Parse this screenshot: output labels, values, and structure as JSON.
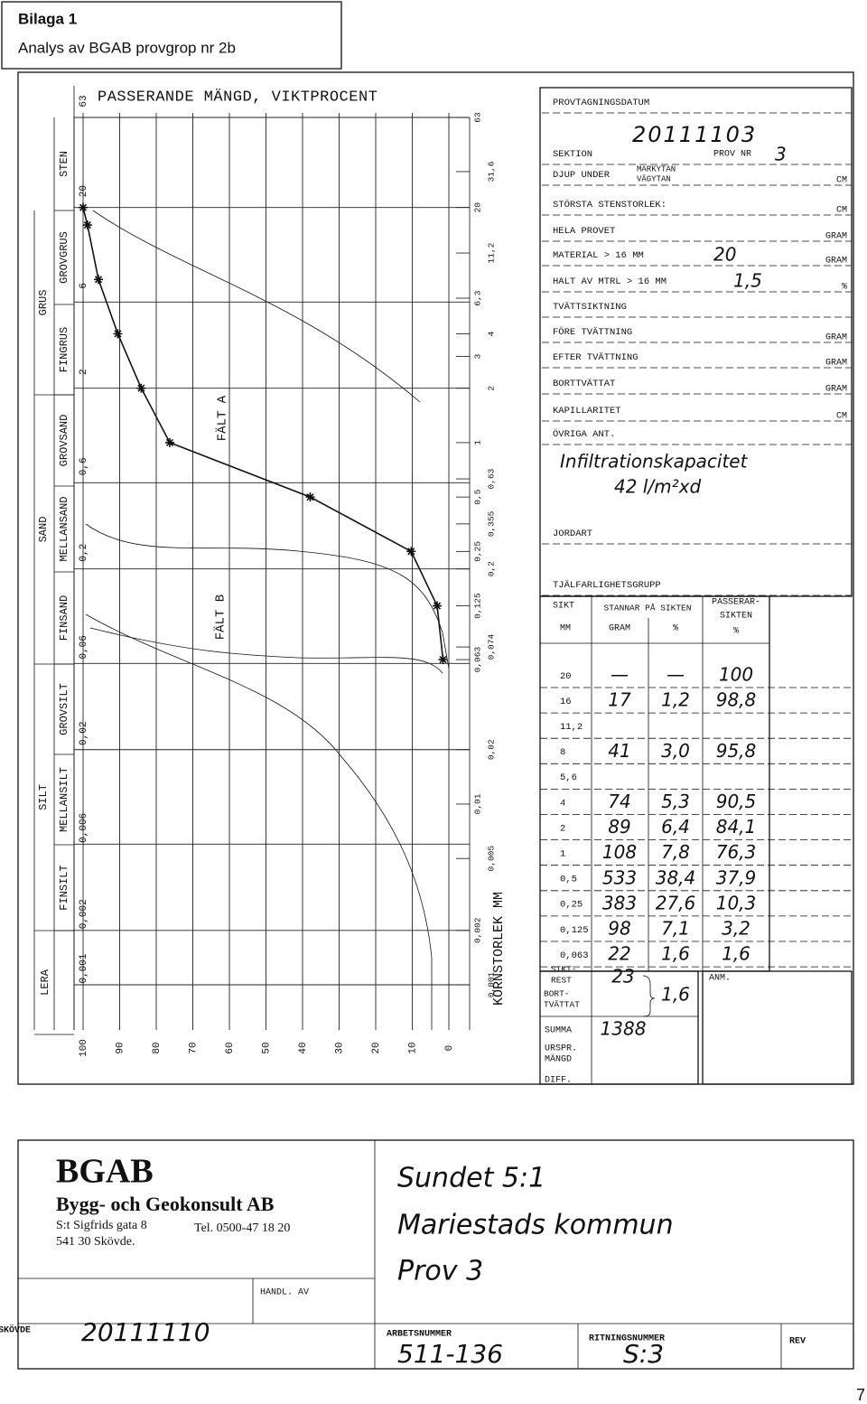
{
  "header": {
    "appendix": "Bilaga 1",
    "title": "Analys av BGAB provgrop nr 2b"
  },
  "chart_data": {
    "type": "line",
    "title": "PASSERANDE MÄNGD, VIKTPROCENT",
    "x_label": "KORNSTORLEK MM",
    "annotations": [
      "FÄLT A",
      "FÄLT B"
    ],
    "x": [
      20,
      16,
      8,
      4,
      2,
      1,
      0.5,
      0.25,
      0.125,
      0.063
    ],
    "values": [
      100,
      98.8,
      95.8,
      90.5,
      84.1,
      76.3,
      37.9,
      10.3,
      3.2,
      1.6
    ],
    "color": "#111111",
    "xlim": [
      63,
      0.001
    ],
    "x_log": true,
    "xticks": [
      63,
      20,
      6,
      2,
      {
        "value": 0.6,
        "label": "0,6"
      },
      {
        "value": 0.2,
        "label": "0,2"
      },
      {
        "value": 0.06,
        "label": "0,06"
      },
      {
        "value": 0.02,
        "label": "0,02"
      },
      {
        "value": 0.006,
        "label": "0,006"
      },
      {
        "value": 0.002,
        "label": "0,002"
      },
      {
        "value": 0.001,
        "label": "0,001"
      }
    ],
    "sieve_ticks": [
      63,
      {
        "value": 31.6,
        "label": "31,6"
      },
      20,
      {
        "value": 11.2,
        "label": "11,2"
      },
      {
        "value": 6.3,
        "label": "6,3"
      },
      4,
      3,
      2,
      1,
      {
        "value": 0.63,
        "label": "0,63"
      },
      {
        "value": 0.5,
        "label": "0,5"
      },
      {
        "value": 0.355,
        "label": "0,355"
      },
      {
        "value": 0.25,
        "label": "0,25"
      },
      {
        "value": 0.2,
        "label": "0,2"
      },
      {
        "value": 0.125,
        "label": "0,125"
      },
      {
        "value": 0.074,
        "label": "0,074"
      },
      {
        "value": 0.063,
        "label": "0,063"
      },
      {
        "value": 0.02,
        "label": "0,02"
      },
      {
        "value": 0.01,
        "label": "0,01"
      },
      {
        "value": 0.005,
        "label": "0,005"
      },
      {
        "value": 0.002,
        "label": "0,002"
      },
      {
        "value": 0.001,
        "label": "0,001"
      }
    ],
    "ylim": [
      100,
      0
    ],
    "yticks": [
      100,
      90,
      80,
      70,
      60,
      50,
      40,
      30,
      20,
      10,
      0
    ],
    "grid": true
  },
  "fractions": [
    "STEN",
    "GRUS",
    "GROVGRUS",
    "FINGRUS",
    "SAND",
    "GROVSAND",
    "MELLANSAND",
    "FINSAND",
    "SILT",
    "GROVSILT",
    "MELLANSILT",
    "FINSILT",
    "LERA"
  ],
  "form_rows": [
    {
      "label": "PROVTAGNINGSDATUM",
      "value": "20111103"
    },
    {
      "label": "SEKTION",
      "value_label": "PROV NR",
      "value": "3"
    },
    {
      "label": "DJUP UNDER",
      "sub": [
        "MARKYTAN",
        "VÄGYTAN"
      ],
      "unit": "CM"
    },
    {
      "label": "STÖRSTA STENSTORLEK:",
      "unit": "CM"
    },
    {
      "label": "HELA PROVET",
      "unit": "GRAM"
    },
    {
      "label": "MATERIAL > 16 MM",
      "value": "20",
      "unit": "GRAM"
    },
    {
      "label": "HALT AV MTRL > 16 MM",
      "value": "1,5",
      "unit": "%"
    },
    {
      "label": "TVÄTTSIKTNING"
    },
    {
      "label": "FÖRE TVÄTTNING",
      "unit": "GRAM"
    },
    {
      "label": "EFTER TVÄTTNING",
      "unit": "GRAM"
    },
    {
      "label": "BORTTVÄTTAT",
      "unit": "GRAM"
    },
    {
      "label": "KAPILLARITET",
      "unit": "CM"
    },
    {
      "label": "ÖVRIGA ANT.",
      "notes": [
        "Infiltrationskapacitet",
        "42 l/m²xd"
      ]
    },
    {
      "label": "JORDART"
    },
    {
      "label": "TJÄLFARLIGHETSGRUPP"
    }
  ],
  "sieve_table": {
    "headers": {
      "sieve": [
        "SIKT",
        "MM"
      ],
      "retained": [
        "STANNAR PÅ SIKTEN",
        "GRAM",
        "%"
      ],
      "passing": [
        "PASSERAR-",
        "SIKTEN",
        "%"
      ]
    },
    "rows": [
      {
        "sieve": "20",
        "grams": "—",
        "pct": "—",
        "passing": "100"
      },
      {
        "sieve": "16",
        "grams": "17",
        "pct": "1,2",
        "passing": "98,8"
      },
      {
        "sieve": "11,2"
      },
      {
        "sieve": "8",
        "grams": "41",
        "pct": "3,0",
        "passing": "95,8"
      },
      {
        "sieve": "5,6"
      },
      {
        "sieve": "4",
        "grams": "74",
        "pct": "5,3",
        "passing": "90,5"
      },
      {
        "sieve": "2",
        "grams": "89",
        "pct": "6,4",
        "passing": "84,1"
      },
      {
        "sieve": "1",
        "grams": "108",
        "pct": "7,8",
        "passing": "76,3"
      },
      {
        "sieve": "0,5",
        "grams": "533",
        "pct": "38,4",
        "passing": "37,9"
      },
      {
        "sieve": "0,25",
        "grams": "383",
        "pct": "27,6",
        "passing": "10,3"
      },
      {
        "sieve": "0,125",
        "grams": "98",
        "pct": "7,1",
        "passing": "3,2"
      },
      {
        "sieve": "0,063",
        "grams": "22",
        "pct": "1,6",
        "passing": "1,6"
      }
    ],
    "rest": {
      "label": [
        "SIKT-",
        "REST"
      ],
      "grams": "23"
    },
    "washed": {
      "label": [
        "BORT-",
        "TVÄTTAT"
      ]
    },
    "rest_pct": "1,6",
    "sum": {
      "label": "SUMMA",
      "grams": "1388"
    },
    "original": {
      "label": [
        "URSPR.",
        "MÄNGD"
      ]
    },
    "diff": {
      "label": "DIFF."
    },
    "remark": "ANM."
  },
  "title_block": {
    "company": "BGAB",
    "company_full": "Bygg- och Geokonsult AB",
    "address": "S:t Sigfrids gata 8",
    "phone": "Tel. 0500-47 18 20",
    "city": "541 30 Skövde.",
    "project": [
      "Sundet 5:1",
      "Mariestads kommun",
      "Prov 3"
    ],
    "handled_label": "HANDL. AV",
    "place": "SKÖVDE",
    "date": "20111110",
    "job_no_label": "ARBETSNUMMER",
    "job_no": "511-136",
    "drawing_no_label": "RITNINGSNUMMER",
    "drawing_no": "S:3",
    "rev_label": "REV"
  },
  "page_number": "7"
}
